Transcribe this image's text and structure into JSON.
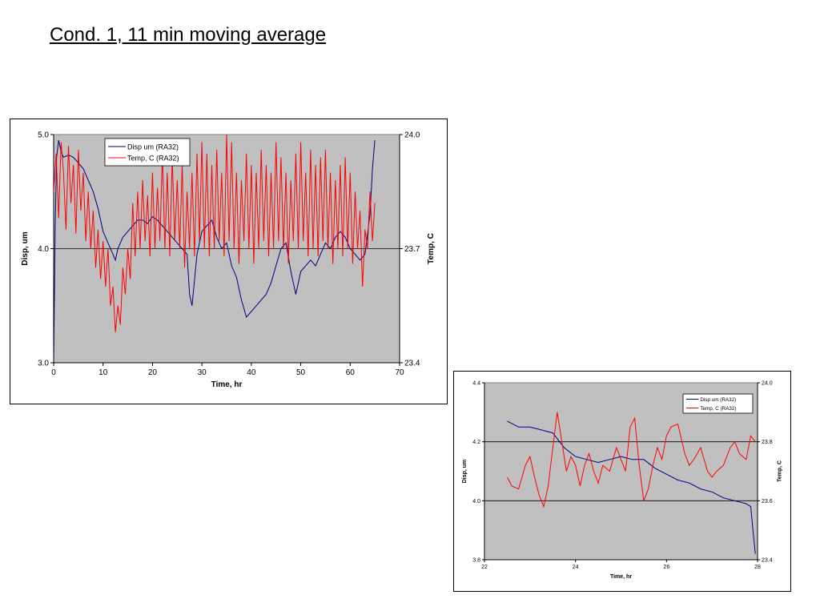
{
  "slide": {
    "title": "Cond. 1, 11 min moving average"
  },
  "chart_data": [
    {
      "type": "line",
      "xlabel": "Time, hr",
      "ylabel": "Disp, um",
      "y2label": "Temp, C",
      "xlim": [
        0,
        70
      ],
      "ylim": [
        3.0,
        5.0
      ],
      "y2lim": [
        23.4,
        24.0
      ],
      "xticks": [
        "0",
        "10",
        "20",
        "30",
        "40",
        "50",
        "60",
        "70"
      ],
      "yticks": [
        "3.0",
        "4.0",
        "5.0"
      ],
      "y2ticks": [
        "23.4",
        "23.7",
        "24.0"
      ],
      "gridlines_y": [
        4.0
      ],
      "legend_position": "top-left",
      "plot_background": "#c0c0c0",
      "series": [
        {
          "name": "Disp um (RA32)",
          "axis": "left",
          "color": "#000080",
          "x": [
            0.0,
            0.3,
            0.6,
            1.0,
            1.5,
            2.0,
            3.0,
            4.0,
            5.0,
            6.0,
            7.0,
            8.0,
            9.0,
            10.0,
            11.0,
            12.0,
            12.5,
            13.0,
            14.0,
            15.0,
            16.0,
            17.0,
            18.0,
            19.0,
            20.0,
            21.0,
            22.0,
            23.0,
            24.0,
            25.0,
            26.0,
            27.0,
            27.5,
            28.0,
            29.0,
            30.0,
            31.0,
            32.0,
            33.0,
            34.0,
            35.0,
            36.0,
            37.0,
            38.0,
            39.0,
            40.0,
            41.0,
            42.0,
            43.0,
            44.0,
            45.0,
            46.0,
            47.0,
            48.0,
            49.0,
            50.0,
            51.0,
            52.0,
            53.0,
            54.0,
            55.0,
            56.0,
            57.0,
            58.0,
            59.0,
            60.0,
            61.0,
            62.0,
            63.0,
            64.0,
            64.5,
            65.0
          ],
          "y": [
            3.0,
            4.2,
            4.8,
            4.95,
            4.85,
            4.8,
            4.82,
            4.8,
            4.75,
            4.7,
            4.6,
            4.5,
            4.35,
            4.15,
            4.05,
            3.95,
            3.9,
            4.0,
            4.1,
            4.15,
            4.2,
            4.25,
            4.25,
            4.22,
            4.28,
            4.25,
            4.2,
            4.15,
            4.1,
            4.05,
            4.0,
            3.95,
            3.6,
            3.5,
            3.95,
            4.15,
            4.2,
            4.25,
            4.1,
            4.0,
            4.05,
            3.85,
            3.75,
            3.55,
            3.4,
            3.45,
            3.5,
            3.55,
            3.6,
            3.7,
            3.85,
            4.0,
            4.05,
            3.8,
            3.6,
            3.8,
            3.85,
            3.9,
            3.85,
            3.95,
            4.05,
            4.0,
            4.1,
            4.15,
            4.1,
            4.0,
            3.95,
            3.9,
            3.95,
            4.3,
            4.7,
            4.95
          ]
        },
        {
          "name": "Temp, C (RA32)",
          "axis": "right",
          "color": "#ff0000",
          "x": [
            0.0,
            0.5,
            1.0,
            1.5,
            2.0,
            2.5,
            3.0,
            3.5,
            4.0,
            4.5,
            5.0,
            5.5,
            6.0,
            6.5,
            7.0,
            7.5,
            8.0,
            8.5,
            9.0,
            9.5,
            10.0,
            10.5,
            11.0,
            11.5,
            12.0,
            12.5,
            13.0,
            13.5,
            14.0,
            14.5,
            15.0,
            15.5,
            16.0,
            16.5,
            17.0,
            17.5,
            18.0,
            18.5,
            19.0,
            19.5,
            20.0,
            20.5,
            21.0,
            21.5,
            22.0,
            22.5,
            23.0,
            23.5,
            24.0,
            24.5,
            25.0,
            25.5,
            26.0,
            26.5,
            27.0,
            27.5,
            28.0,
            28.5,
            29.0,
            29.5,
            30.0,
            30.5,
            31.0,
            31.5,
            32.0,
            32.5,
            33.0,
            33.5,
            34.0,
            34.5,
            35.0,
            35.5,
            36.0,
            36.5,
            37.0,
            37.5,
            38.0,
            38.5,
            39.0,
            39.5,
            40.0,
            40.5,
            41.0,
            41.5,
            42.0,
            42.5,
            43.0,
            43.5,
            44.0,
            44.5,
            45.0,
            45.5,
            46.0,
            46.5,
            47.0,
            47.5,
            48.0,
            48.5,
            49.0,
            49.5,
            50.0,
            50.5,
            51.0,
            51.5,
            52.0,
            52.5,
            53.0,
            53.5,
            54.0,
            54.5,
            55.0,
            55.5,
            56.0,
            56.5,
            57.0,
            57.5,
            58.0,
            58.5,
            59.0,
            59.5,
            60.0,
            60.5,
            61.0,
            61.5,
            62.0,
            62.5,
            63.0,
            63.5,
            64.0,
            64.5,
            65.0
          ],
          "y": [
            23.85,
            23.95,
            23.78,
            23.98,
            23.9,
            23.75,
            23.97,
            23.82,
            23.92,
            23.74,
            23.96,
            23.8,
            23.9,
            23.72,
            23.85,
            23.7,
            23.8,
            23.65,
            23.75,
            23.62,
            23.72,
            23.6,
            23.7,
            23.55,
            23.6,
            23.48,
            23.55,
            23.5,
            23.65,
            23.58,
            23.7,
            23.62,
            23.82,
            23.68,
            23.85,
            23.7,
            23.88,
            23.72,
            23.84,
            23.68,
            23.9,
            23.7,
            23.86,
            23.72,
            23.95,
            23.7,
            23.9,
            23.68,
            23.94,
            23.72,
            23.88,
            23.7,
            23.92,
            23.65,
            23.85,
            23.7,
            23.9,
            23.68,
            23.95,
            23.72,
            23.98,
            23.7,
            23.95,
            23.68,
            23.92,
            23.7,
            23.96,
            23.72,
            23.9,
            23.68,
            24.0,
            23.72,
            23.98,
            23.7,
            23.9,
            23.66,
            23.88,
            23.72,
            23.95,
            23.7,
            23.92,
            23.66,
            23.9,
            23.7,
            23.96,
            23.72,
            23.92,
            23.68,
            23.9,
            23.7,
            23.98,
            23.72,
            23.94,
            23.7,
            23.9,
            23.66,
            23.88,
            23.72,
            23.95,
            23.7,
            23.98,
            23.72,
            23.9,
            23.68,
            23.96,
            23.7,
            23.92,
            23.68,
            23.94,
            23.72,
            23.96,
            23.7,
            23.9,
            23.66,
            23.88,
            23.7,
            23.92,
            23.68,
            23.94,
            23.7,
            23.9,
            23.66,
            23.85,
            23.7,
            23.8,
            23.6,
            23.75,
            23.7,
            23.85,
            23.72,
            23.82
          ]
        }
      ]
    },
    {
      "type": "line",
      "xlabel": "Time, hr",
      "ylabel": "Disp, um",
      "y2label": "Temp, C",
      "xlim": [
        22,
        28
      ],
      "ylim": [
        3.8,
        4.4
      ],
      "y2lim": [
        23.4,
        24.0
      ],
      "xticks": [
        "22",
        "24",
        "26",
        "28"
      ],
      "yticks": [
        "3.8",
        "4.0",
        "4.2",
        "4.4"
      ],
      "y2ticks": [
        "23.4",
        "23.6",
        "23.8",
        "24.0"
      ],
      "gridlines_y": [
        4.0,
        4.2
      ],
      "legend_position": "top-right",
      "plot_background": "#c0c0c0",
      "series": [
        {
          "name": "Disp um (RA32)",
          "axis": "left",
          "color": "#000080",
          "x": [
            22.5,
            22.75,
            23.0,
            23.25,
            23.5,
            23.75,
            24.0,
            24.25,
            24.5,
            24.75,
            25.0,
            25.25,
            25.5,
            25.75,
            26.0,
            26.25,
            26.5,
            26.75,
            27.0,
            27.25,
            27.5,
            27.75,
            27.85,
            27.9,
            27.95
          ],
          "y": [
            4.27,
            4.25,
            4.25,
            4.24,
            4.23,
            4.18,
            4.15,
            4.14,
            4.13,
            4.14,
            4.15,
            4.14,
            4.14,
            4.11,
            4.09,
            4.07,
            4.06,
            4.04,
            4.03,
            4.01,
            4.0,
            3.99,
            3.98,
            3.9,
            3.82
          ]
        },
        {
          "name": "Temp, C (RA32)",
          "axis": "right",
          "color": "#ff0000",
          "x": [
            22.5,
            22.6,
            22.75,
            22.9,
            23.0,
            23.1,
            23.2,
            23.3,
            23.4,
            23.5,
            23.6,
            23.7,
            23.8,
            23.9,
            24.0,
            24.1,
            24.2,
            24.3,
            24.4,
            24.5,
            24.6,
            24.75,
            24.9,
            25.0,
            25.1,
            25.2,
            25.3,
            25.4,
            25.5,
            25.6,
            25.7,
            25.8,
            25.9,
            26.0,
            26.1,
            26.25,
            26.4,
            26.5,
            26.6,
            26.75,
            26.9,
            27.0,
            27.1,
            27.25,
            27.4,
            27.5,
            27.6,
            27.75,
            27.85,
            27.95
          ],
          "y": [
            23.68,
            23.65,
            23.64,
            23.72,
            23.75,
            23.68,
            23.62,
            23.58,
            23.65,
            23.78,
            23.9,
            23.8,
            23.7,
            23.75,
            23.72,
            23.65,
            23.72,
            23.76,
            23.7,
            23.66,
            23.72,
            23.7,
            23.78,
            23.74,
            23.7,
            23.85,
            23.88,
            23.72,
            23.6,
            23.64,
            23.72,
            23.78,
            23.74,
            23.82,
            23.85,
            23.86,
            23.76,
            23.72,
            23.74,
            23.78,
            23.7,
            23.68,
            23.7,
            23.72,
            23.78,
            23.8,
            23.76,
            23.74,
            23.82,
            23.8
          ]
        }
      ]
    }
  ]
}
